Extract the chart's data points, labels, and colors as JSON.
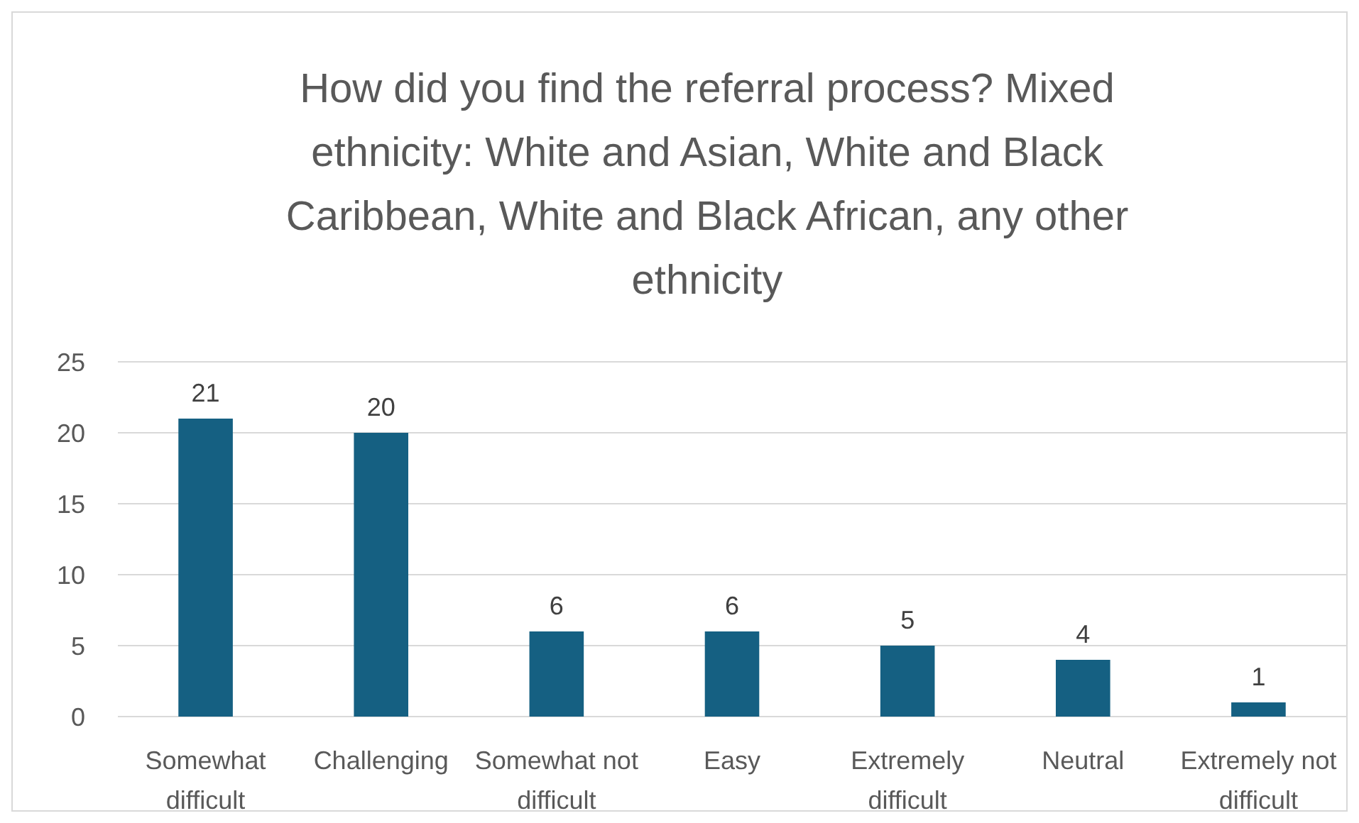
{
  "chart_data": {
    "type": "bar",
    "title": "How did you find the referral process? Mixed ethnicity: White and Asian, White and Black Caribbean, White and Black African, any other ethnicity",
    "categories": [
      "Somewhat difficult",
      "Challenging",
      "Somewhat not difficult",
      "Easy",
      "Extremely difficult",
      "Neutral",
      "Extremely not difficult"
    ],
    "values": [
      21,
      20,
      6,
      6,
      5,
      4,
      1
    ],
    "color": "#156082",
    "ylim": [
      0,
      25
    ],
    "yticks": [
      0,
      5,
      10,
      15,
      20,
      25
    ],
    "grid": "y",
    "data_labels": true
  }
}
